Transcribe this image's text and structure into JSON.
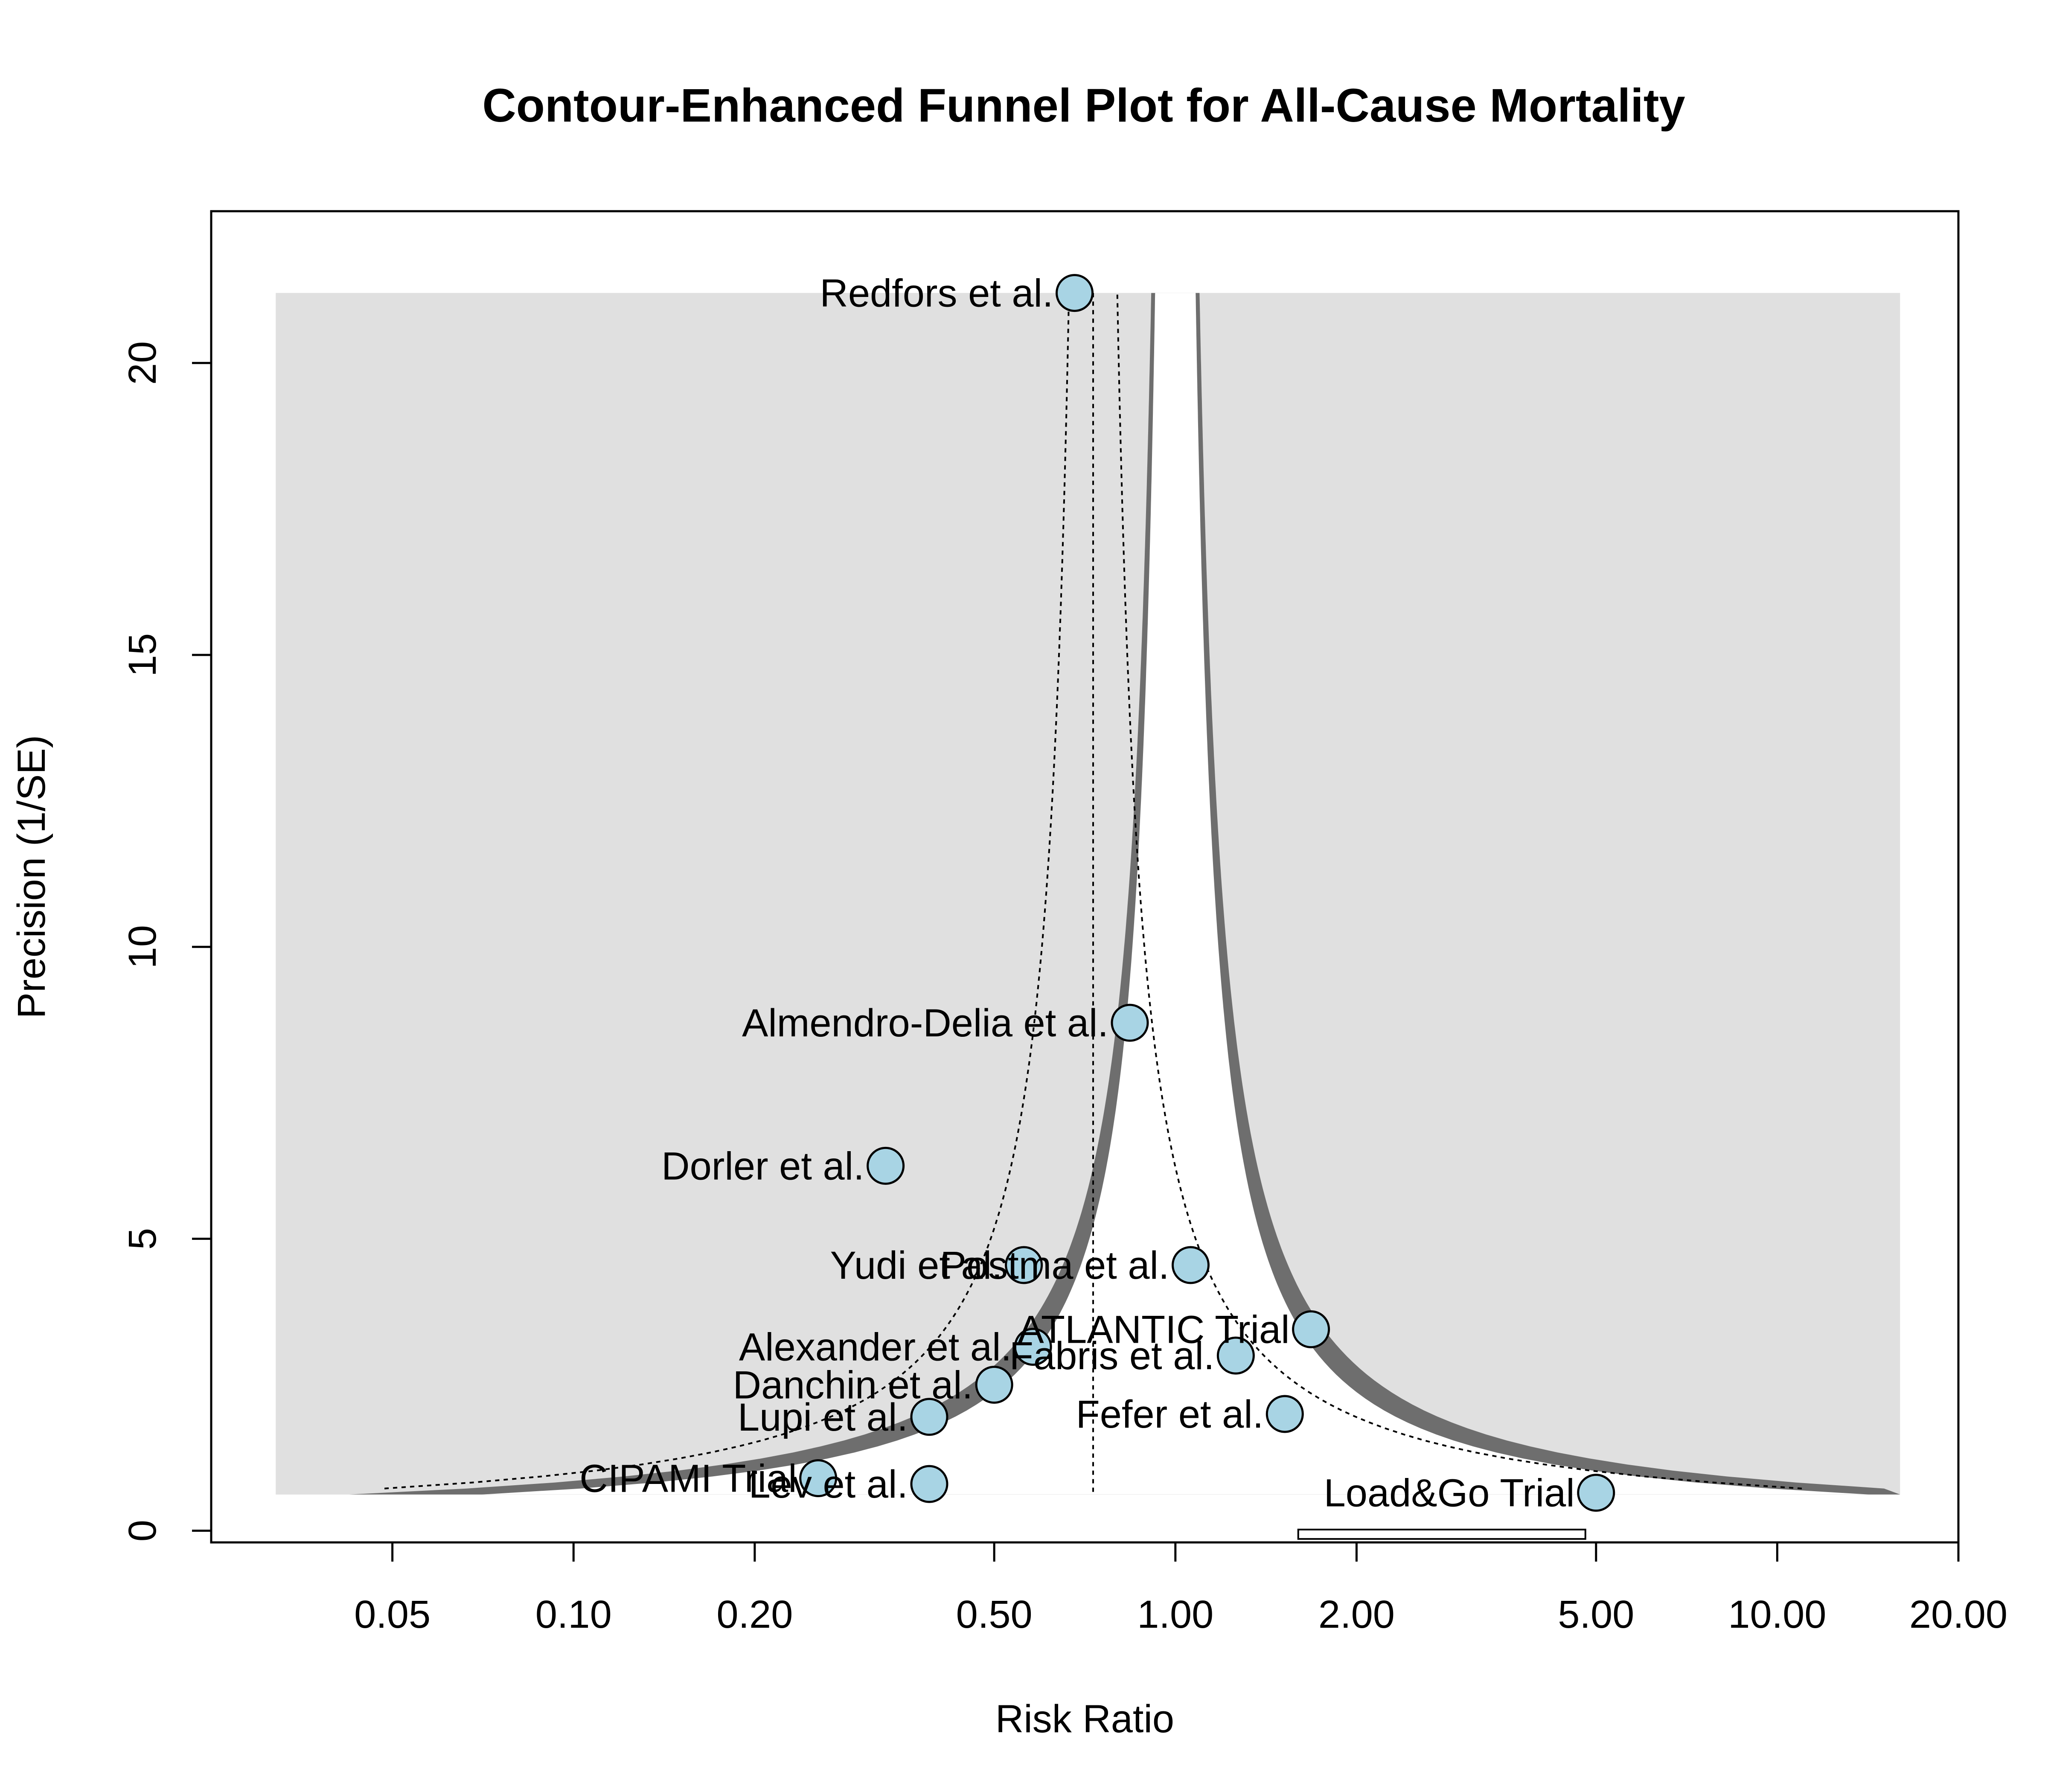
{
  "chart_data": {
    "type": "scatter",
    "title": "Contour-Enhanced Funnel Plot for All-Cause Mortality",
    "xlabel": "Risk Ratio",
    "ylabel": "Precision (1/SE)",
    "x_scale": "log",
    "xlim": [
      0.025,
      20
    ],
    "ylim": [
      0,
      22
    ],
    "x_ticks": [
      0.05,
      0.1,
      0.2,
      0.5,
      1.0,
      2.0,
      5.0,
      10.0,
      20.0
    ],
    "x_tick_labels": [
      "0.05",
      "0.10",
      "0.20",
      "0.50",
      "1.00",
      "2.00",
      "5.00",
      "10.00",
      "20.00"
    ],
    "y_ticks": [
      0,
      5,
      10,
      15,
      20
    ],
    "y_tick_labels": [
      "0",
      "5",
      "10",
      "15",
      "20"
    ],
    "pooled_estimate": 0.73,
    "contour_levels": [
      "p > 0.10",
      "0.05 < p < 0.10",
      "p < 0.05"
    ],
    "contour_colors": [
      "#ffffff",
      "#6e6e6e",
      "#e0e0e0"
    ],
    "point_fill": "#a8d4e4",
    "grid": false,
    "legend": "none",
    "points": [
      {
        "study": "Redfors et al.",
        "x": 0.68,
        "y": 21.2,
        "label_side": "left"
      },
      {
        "study": "Almendro-Delia et al.",
        "x": 0.84,
        "y": 8.7,
        "label_side": "left"
      },
      {
        "study": "Dorler et al.",
        "x": 0.33,
        "y": 6.25,
        "label_side": "left"
      },
      {
        "study": "Yudi et al.",
        "x": 0.56,
        "y": 4.55,
        "label_side": "left"
      },
      {
        "study": "Postma et al.",
        "x": 1.06,
        "y": 4.55,
        "label_side": "left"
      },
      {
        "study": "ATLANTIC Trial",
        "x": 1.68,
        "y": 3.45,
        "label_side": "left"
      },
      {
        "study": "Alexander et al.",
        "x": 0.58,
        "y": 3.15,
        "label_side": "left"
      },
      {
        "study": "Fabris et al.",
        "x": 1.26,
        "y": 3.0,
        "label_side": "left"
      },
      {
        "study": "Danchin et al.",
        "x": 0.5,
        "y": 2.5,
        "label_side": "left"
      },
      {
        "study": "Lupi et al.",
        "x": 0.39,
        "y": 1.95,
        "label_side": "left"
      },
      {
        "study": "Fefer et al.",
        "x": 1.52,
        "y": 2.0,
        "label_side": "left"
      },
      {
        "study": "CIPAMI Trial",
        "x": 0.255,
        "y": 0.9,
        "label_side": "left"
      },
      {
        "study": "Lev et al.",
        "x": 0.39,
        "y": 0.8,
        "label_side": "left"
      },
      {
        "study": "Load&Go Trial",
        "x": 5.0,
        "y": 0.65,
        "label_side": "left"
      }
    ]
  }
}
